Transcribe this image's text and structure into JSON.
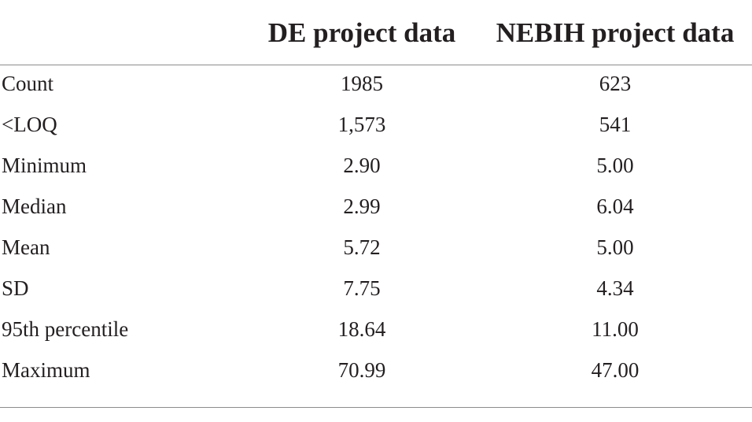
{
  "table": {
    "headers": {
      "label": "",
      "col1": "DE project data",
      "col2": "NEBIH project data"
    },
    "rows": [
      {
        "label": "Count",
        "de": "1985",
        "nebih": "623"
      },
      {
        "label": "<LOQ",
        "de": "1,573",
        "nebih": "541"
      },
      {
        "label": "Minimum",
        "de": "2.90",
        "nebih": "5.00"
      },
      {
        "label": "Median",
        "de": "2.99",
        "nebih": "6.04"
      },
      {
        "label": "Mean",
        "de": "5.72",
        "nebih": "5.00"
      },
      {
        "label": "SD",
        "de": "7.75",
        "nebih": "4.34"
      },
      {
        "label": "95th percentile",
        "de": "18.64",
        "nebih": "11.00"
      },
      {
        "label": "Maximum",
        "de": "70.99",
        "nebih": "47.00"
      }
    ]
  }
}
